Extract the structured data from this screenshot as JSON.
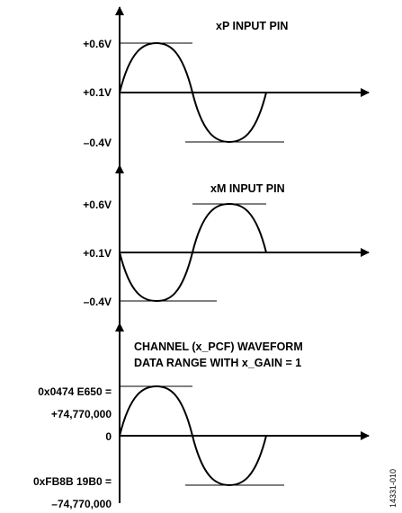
{
  "panels": [
    {
      "title": "xP INPUT PIN",
      "labels": {
        "high": "+0.6V",
        "mid": "+0.1V",
        "low": "–0.4V"
      }
    },
    {
      "title": "xM INPUT PIN",
      "labels": {
        "high": "+0.6V",
        "mid": "+0.1V",
        "low": "–0.4V"
      }
    },
    {
      "title_line1": "CHANNEL (x_PCF) WAVEFORM",
      "title_line2": "DATA RANGE WITH x_GAIN = 1",
      "labels": {
        "high_line1": "0x0474 E650 =",
        "high_line2": "+74,770,000",
        "mid": "0",
        "low_line1": "0xFB8B 19B0 =",
        "low_line2": "–74,770,000"
      }
    }
  ],
  "figure_id": "14331-010"
}
